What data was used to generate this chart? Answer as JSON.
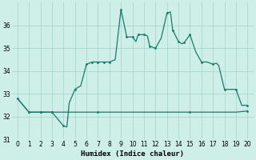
{
  "xlabel": "Humidex (Indice chaleur)",
  "line_color": "#1a7a6a",
  "bg_color": "#ceeee8",
  "grid_color": "#a8d8d0",
  "ylim": [
    31,
    37
  ],
  "xlim": [
    -0.5,
    20.5
  ],
  "yticks": [
    31,
    32,
    33,
    34,
    35,
    36
  ],
  "xticks": [
    0,
    1,
    2,
    3,
    4,
    5,
    6,
    7,
    8,
    9,
    10,
    11,
    12,
    13,
    14,
    15,
    16,
    17,
    18,
    19,
    20
  ],
  "curve1_x": [
    0,
    1,
    2,
    3,
    4,
    4.3,
    4.5,
    5,
    5.3,
    5.5,
    6,
    6.5,
    7,
    7.5,
    8,
    8.5,
    9,
    9.3,
    9.5,
    10,
    10.3,
    10.5,
    11,
    11.3,
    11.5,
    12,
    12.5,
    13,
    13.3,
    13.5,
    14,
    14.3,
    14.5,
    15,
    15.5,
    16,
    16.5,
    17,
    17.3,
    17.5,
    18,
    18.5,
    19,
    19.5,
    20
  ],
  "curve1_y": [
    32.8,
    32.2,
    32.2,
    32.2,
    31.6,
    31.55,
    32.6,
    33.2,
    33.3,
    33.35,
    34.3,
    34.4,
    34.4,
    34.4,
    34.4,
    34.5,
    36.7,
    36.0,
    35.5,
    35.5,
    35.3,
    35.6,
    35.6,
    35.55,
    35.1,
    35.0,
    35.45,
    36.55,
    36.6,
    35.8,
    35.3,
    35.2,
    35.25,
    35.6,
    34.85,
    34.4,
    34.4,
    34.3,
    34.35,
    34.25,
    33.2,
    33.2,
    33.2,
    32.5,
    32.5
  ],
  "curve2_x": [
    0,
    1,
    2,
    3,
    4,
    5,
    6,
    7,
    8,
    9,
    10,
    11,
    12,
    13,
    14,
    15,
    16,
    17,
    18,
    19,
    20
  ],
  "curve2_y": [
    32.8,
    32.2,
    32.2,
    32.2,
    32.2,
    32.2,
    32.2,
    32.2,
    32.2,
    32.2,
    32.2,
    32.2,
    32.2,
    32.2,
    32.2,
    32.2,
    32.2,
    32.2,
    32.2,
    32.2,
    32.25
  ],
  "dots1_x": [
    0,
    1,
    2,
    3,
    4,
    5,
    6,
    6.5,
    7,
    7.5,
    8,
    9,
    9.5,
    10,
    10.5,
    11,
    11.5,
    12,
    13,
    13.5,
    14,
    14.5,
    15,
    16,
    17,
    18,
    19,
    20
  ],
  "dots1_y": [
    32.8,
    32.2,
    32.2,
    32.2,
    31.6,
    33.2,
    34.3,
    34.4,
    34.4,
    34.4,
    34.4,
    36.7,
    35.5,
    35.5,
    35.6,
    35.6,
    35.1,
    35.0,
    36.55,
    35.8,
    35.3,
    35.25,
    35.6,
    34.4,
    34.3,
    33.2,
    33.2,
    32.5
  ],
  "dots2_x": [
    1,
    2,
    3,
    7,
    15,
    20
  ],
  "dots2_y": [
    32.2,
    32.2,
    32.2,
    32.2,
    32.2,
    32.25
  ]
}
